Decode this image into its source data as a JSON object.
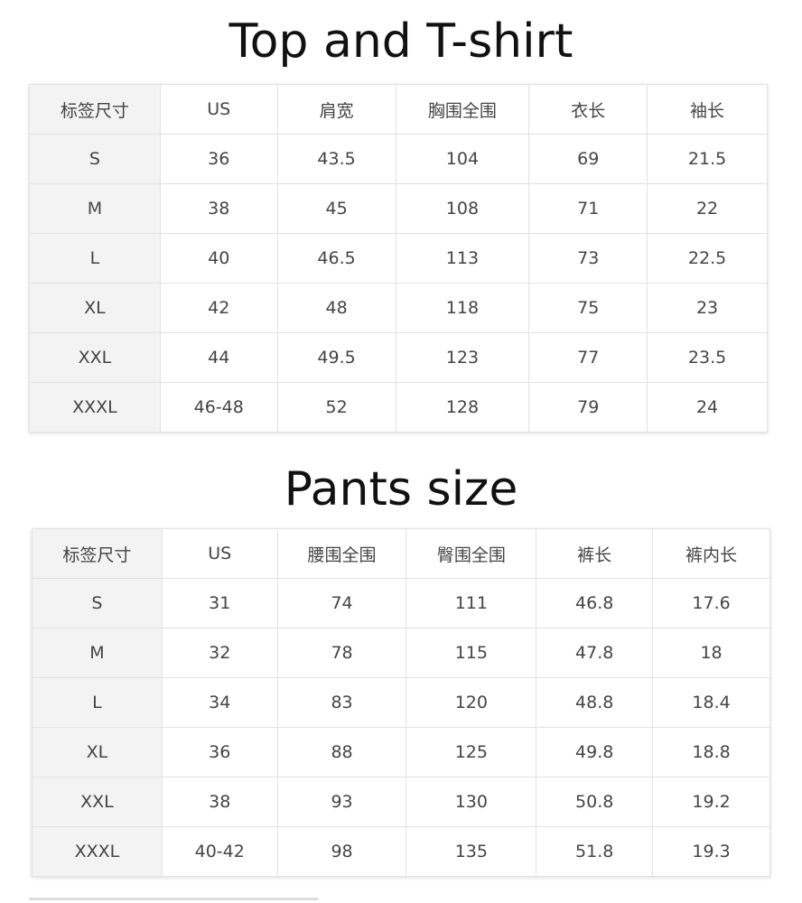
{
  "tables": [
    {
      "title": "Top and T-shirt",
      "colwidths": [
        145,
        130,
        131,
        148,
        131,
        133
      ],
      "headers": [
        "标签尺寸",
        "US",
        "肩宽",
        "胸围全围",
        "衣长",
        "袖长"
      ],
      "rows": [
        [
          "S",
          "36",
          "43.5",
          "104",
          "69",
          "21.5"
        ],
        [
          "M",
          "38",
          "45",
          "108",
          "71",
          "22"
        ],
        [
          "L",
          "40",
          "46.5",
          "113",
          "73",
          "22.5"
        ],
        [
          "XL",
          "42",
          "48",
          "118",
          "75",
          "23"
        ],
        [
          "XXL",
          "44",
          "49.5",
          "123",
          "77",
          "23.5"
        ],
        [
          "XXXL",
          "46-48",
          "52",
          "128",
          "79",
          "24"
        ]
      ]
    },
    {
      "title": "Pants size",
      "colwidths": [
        144,
        128,
        143,
        144,
        129,
        130
      ],
      "headers": [
        "标签尺寸",
        "US",
        "腰围全围",
        "臀围全围",
        "裤长",
        "裤内长"
      ],
      "rows": [
        [
          "S",
          "31",
          "74",
          "111",
          "46.8",
          "17.6"
        ],
        [
          "M",
          "32",
          "78",
          "115",
          "47.8",
          "18"
        ],
        [
          "L",
          "34",
          "83",
          "120",
          "48.8",
          "18.4"
        ],
        [
          "XL",
          "36",
          "88",
          "125",
          "49.8",
          "18.8"
        ],
        [
          "XXL",
          "38",
          "93",
          "130",
          "50.8",
          "19.2"
        ],
        [
          "XXXL",
          "40-42",
          "98",
          "135",
          "51.8",
          "19.3"
        ]
      ]
    }
  ]
}
